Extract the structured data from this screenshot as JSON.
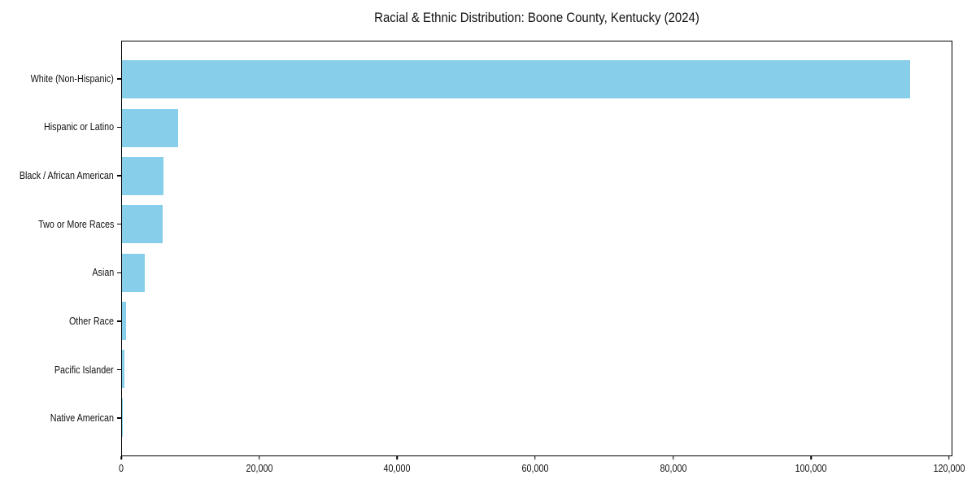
{
  "chart_data": {
    "type": "bar",
    "orientation": "horizontal",
    "title": "Racial & Ethnic Distribution: Boone County, Kentucky (2024)",
    "categories": [
      "White (Non-Hispanic)",
      "Hispanic or Latino",
      "Black / African American",
      "Two or More Races",
      "Asian",
      "Other Race",
      "Pacific Islander",
      "Native American"
    ],
    "values": [
      114500,
      8100,
      6000,
      5900,
      3300,
      600,
      400,
      100
    ],
    "xlabel": "",
    "ylabel": "",
    "xlim": [
      0,
      120500
    ],
    "x_ticks": [
      0,
      20000,
      40000,
      60000,
      80000,
      100000,
      120000
    ],
    "x_tick_labels": [
      "0",
      "20,000",
      "40,000",
      "60,000",
      "80,000",
      "100,000",
      "120,000"
    ],
    "bar_color": "#87CEEB",
    "axis_color": "#000000",
    "text_color": "#111111",
    "background_color": "#ffffff",
    "grid": false,
    "legend": "none"
  }
}
